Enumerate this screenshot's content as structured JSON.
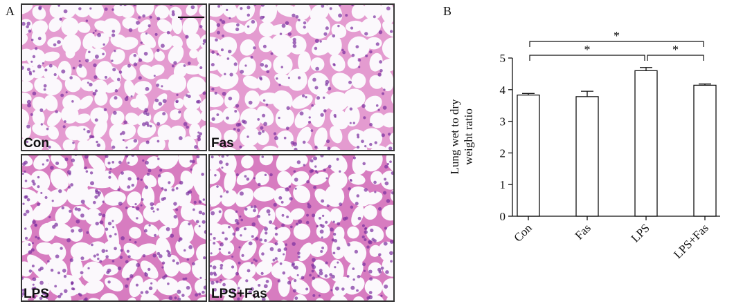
{
  "panel_a": {
    "label": "A",
    "images": [
      "Con",
      "Fas",
      "LPS",
      "LPS+Fas"
    ]
  },
  "chart_data": {
    "type": "bar",
    "panel_label": "B",
    "ylabel": [
      "Lung wet to dry",
      "weight ratio"
    ],
    "categories": [
      "Con",
      "Fas",
      "LPS",
      "LPS+Fas"
    ],
    "values": [
      3.83,
      3.78,
      4.6,
      4.14
    ],
    "errors": [
      0.05,
      0.17,
      0.1,
      0.04
    ],
    "color": "#ffffff",
    "ylim": [
      0,
      5
    ],
    "yticks": [
      0,
      1,
      2,
      3,
      4,
      5
    ],
    "significance": [
      {
        "pair": [
          "Con",
          "LPS"
        ],
        "label": "*"
      },
      {
        "pair": [
          "LPS",
          "LPS+Fas"
        ],
        "label": "*"
      },
      {
        "pair": [
          "Con",
          "LPS+Fas"
        ],
        "label": "*"
      }
    ]
  }
}
